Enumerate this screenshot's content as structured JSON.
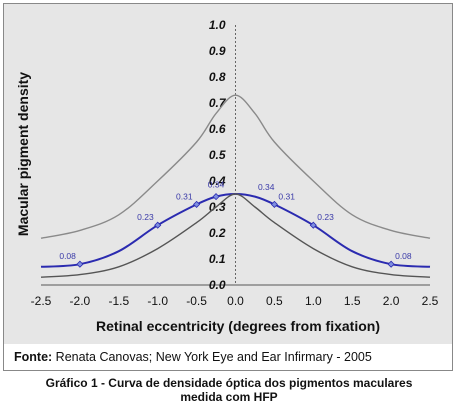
{
  "chart_data": {
    "type": "line",
    "xlabel": "Retinal eccentricity (degrees from fixation)",
    "ylabel": "Macular pigment density",
    "xlim": [
      -2.5,
      2.5
    ],
    "ylim": [
      0,
      1.0
    ],
    "x_ticks": [
      "-2.5",
      "-2.0",
      "-1.5",
      "-1.0",
      "-0.5",
      "0.0",
      "0.5",
      "1.0",
      "1.5",
      "2.0",
      "2.5"
    ],
    "y_ticks": [
      "0.0",
      "0.1",
      "0.2",
      "0.3",
      "0.4",
      "0.5",
      "0.6",
      "0.7",
      "0.8",
      "0.9",
      "1.0"
    ],
    "grid": false,
    "series": [
      {
        "role": "upper-bound",
        "color": "#8a8a8a",
        "x": [
          -2.5,
          -2.0,
          -1.5,
          -1.0,
          -0.5,
          -0.25,
          0.0,
          0.25,
          0.5,
          1.0,
          1.5,
          2.0,
          2.5
        ],
        "y": [
          0.18,
          0.21,
          0.27,
          0.4,
          0.55,
          0.66,
          0.73,
          0.66,
          0.55,
          0.4,
          0.27,
          0.21,
          0.18
        ]
      },
      {
        "role": "mean",
        "color": "#2b2bb0",
        "x": [
          -2.5,
          -2.0,
          -1.5,
          -1.0,
          -0.5,
          -0.25,
          0.0,
          0.25,
          0.5,
          1.0,
          1.5,
          2.0,
          2.5
        ],
        "y": [
          0.07,
          0.08,
          0.13,
          0.23,
          0.31,
          0.34,
          0.35,
          0.34,
          0.31,
          0.23,
          0.13,
          0.08,
          0.07
        ],
        "markers": [
          {
            "x": -2.0,
            "y": 0.08,
            "label": "0.08"
          },
          {
            "x": -1.0,
            "y": 0.23,
            "label": "0.23"
          },
          {
            "x": -0.5,
            "y": 0.31,
            "label": "0.31"
          },
          {
            "x": -0.25,
            "y": 0.34,
            "label": "0.34"
          },
          {
            "x": 0.5,
            "y": 0.31,
            "label": "0.31"
          },
          {
            "x": 1.0,
            "y": 0.23,
            "label": "0.23"
          },
          {
            "x": 2.0,
            "y": 0.08,
            "label": "0.08"
          }
        ],
        "extra_labels": [
          {
            "x": 0.25,
            "y": 0.35,
            "label": "0.34"
          }
        ]
      },
      {
        "role": "lower-bound",
        "color": "#555555",
        "x": [
          -2.5,
          -2.0,
          -1.5,
          -1.0,
          -0.5,
          -0.25,
          0.0,
          0.25,
          0.5,
          1.0,
          1.5,
          2.0,
          2.5
        ],
        "y": [
          0.03,
          0.04,
          0.07,
          0.14,
          0.24,
          0.3,
          0.35,
          0.3,
          0.24,
          0.14,
          0.07,
          0.04,
          0.03
        ]
      }
    ]
  },
  "source": {
    "label": "Fonte:",
    "text": " Renata Canovas; New York Eye and Ear Infirmary - 2005"
  },
  "caption": {
    "line1": "Gráfico 1 - Curva de densidade óptica dos pigmentos maculares",
    "line2": "medida com HFP"
  }
}
